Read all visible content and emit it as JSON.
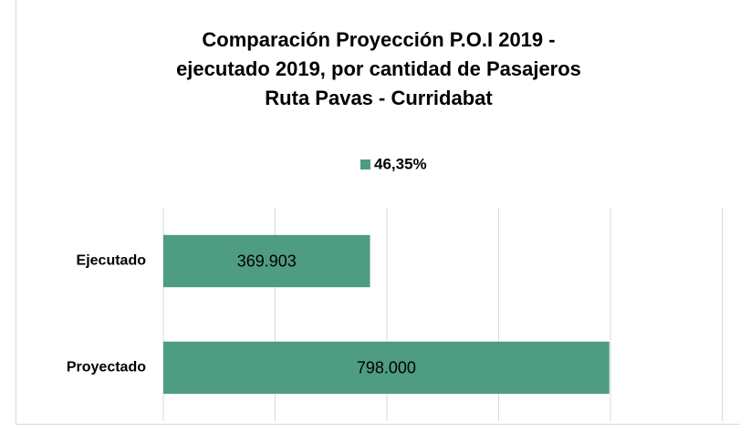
{
  "chart_data": {
    "type": "barh",
    "title": [
      "Comparación Proyección P.O.I 2019 -",
      "ejecutado 2019, por cantidad de Pasajeros",
      "Ruta Pavas - Curridabat"
    ],
    "categories": [
      "Ejecutado",
      "Proyectado"
    ],
    "series": [
      {
        "name": "46,35%",
        "color": "#4e9c81",
        "values": [
          369903,
          798000
        ],
        "value_labels": [
          "369.903",
          "798.000"
        ]
      }
    ],
    "xlim": [
      0,
      1000000
    ],
    "xticks": [
      0,
      200000,
      400000,
      600000,
      800000,
      1000000
    ],
    "grid": true,
    "legend": "top"
  }
}
